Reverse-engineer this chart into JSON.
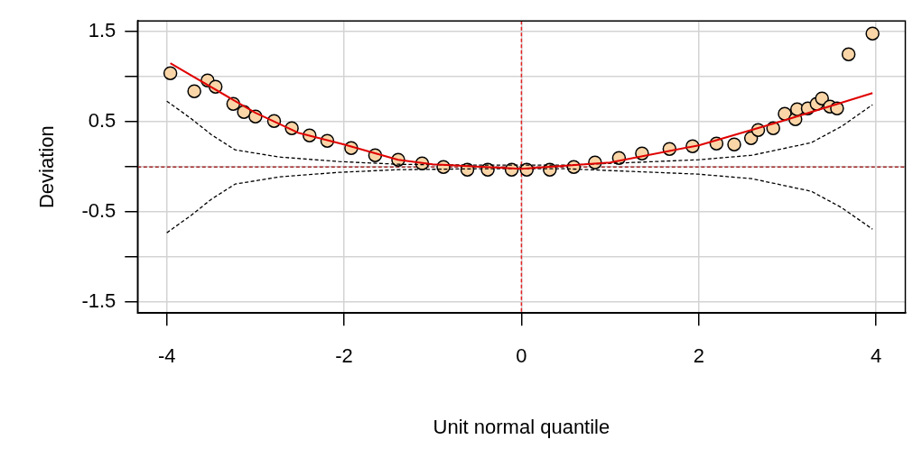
{
  "chart_data": {
    "type": "scatter",
    "xlabel": "Unit normal quantile",
    "ylabel": "Deviation",
    "xlim": [
      -4.33,
      4.33
    ],
    "ylim": [
      -1.62,
      1.62
    ],
    "xticks": [
      -4,
      -2,
      0,
      2,
      4
    ],
    "yticks": [
      -1.5,
      {
        "value": -1,
        "label": null
      },
      -0.5,
      {
        "value": 0,
        "label": null
      },
      0.5,
      {
        "value": 1,
        "label": null
      },
      1.5
    ],
    "grid": true,
    "legend": false,
    "series": [
      {
        "color": "#f9d5a7",
        "marker": "circle",
        "x": [
          -3.96,
          -3.69,
          -3.54,
          -3.45,
          -3.25,
          -3.13,
          -3.0,
          -2.79,
          -2.59,
          -2.39,
          -2.19,
          -1.92,
          -1.65,
          -1.39,
          -1.12,
          -0.88,
          -0.61,
          -0.38,
          -0.11,
          0.06,
          0.32,
          0.59,
          0.83,
          1.1,
          1.36,
          1.67,
          1.93,
          2.2,
          2.4,
          2.59,
          2.67,
          2.84,
          2.97,
          3.09,
          3.11,
          3.23,
          3.33,
          3.39,
          3.48,
          3.56,
          3.69,
          3.96
        ],
        "values": [
          1.04,
          0.84,
          0.96,
          0.89,
          0.7,
          0.61,
          0.56,
          0.51,
          0.43,
          0.35,
          0.29,
          0.21,
          0.13,
          0.08,
          0.04,
          0.0,
          -0.03,
          -0.03,
          -0.03,
          -0.03,
          -0.03,
          0.0,
          0.05,
          0.1,
          0.15,
          0.2,
          0.23,
          0.26,
          0.25,
          0.32,
          0.41,
          0.43,
          0.59,
          0.53,
          0.64,
          0.65,
          0.7,
          0.76,
          0.67,
          0.65,
          1.25,
          1.48
        ]
      },
      {
        "type": "line",
        "color": "#e00000",
        "marker": "none",
        "line_style": "solid",
        "x": [
          -3.96,
          -3.0,
          -2.52,
          -2.0,
          -1.39,
          -1.0,
          0.0,
          1.0,
          2.0,
          2.94,
          3.96
        ],
        "values": [
          1.15,
          0.6,
          0.38,
          0.25,
          0.08,
          0.03,
          -0.02,
          0.05,
          0.24,
          0.51,
          0.82
        ]
      },
      {
        "type": "line",
        "color": "#000000",
        "marker": "none",
        "line_style": "dashed",
        "x": [
          -4.0,
          -3.73,
          -3.5,
          -3.23,
          -2.73,
          -2.06,
          -1.39,
          -0.5,
          0.0,
          0.5,
          1.26,
          2.0,
          2.6,
          3.27,
          3.61,
          3.96
        ],
        "values": [
          0.73,
          0.54,
          0.36,
          0.19,
          0.11,
          0.06,
          0.03,
          0.02,
          0.02,
          0.02,
          0.05,
          0.08,
          0.13,
          0.27,
          0.45,
          0.69
        ]
      },
      {
        "type": "line",
        "color": "#000000",
        "marker": "none",
        "line_style": "dashed",
        "x": [
          -4.0,
          -3.73,
          -3.5,
          -3.23,
          -2.73,
          -2.06,
          -1.39,
          -0.5,
          0.0,
          0.5,
          1.26,
          2.0,
          2.6,
          3.27,
          3.61,
          3.96
        ],
        "values": [
          -0.73,
          -0.54,
          -0.36,
          -0.19,
          -0.11,
          -0.06,
          -0.03,
          -0.02,
          -0.02,
          -0.02,
          -0.05,
          -0.08,
          -0.13,
          -0.27,
          -0.45,
          -0.69
        ]
      }
    ],
    "ref_lines": [
      {
        "axis": "y",
        "value": 0,
        "color": "#a52a2a",
        "line_style": "dashed"
      },
      {
        "axis": "x",
        "value": 0,
        "color": "#e32222",
        "line_style": "dashed"
      }
    ]
  }
}
